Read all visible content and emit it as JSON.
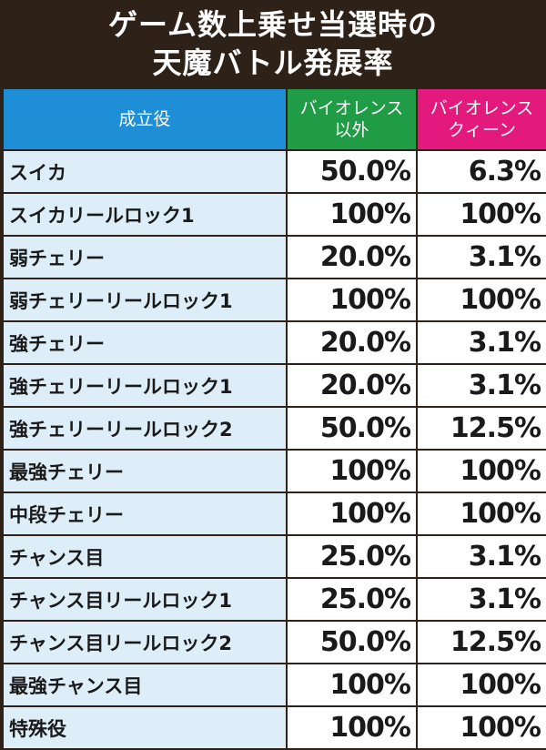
{
  "title": {
    "line1": "ゲーム数上乗せ当選時の",
    "line2": "天魔バトル発展率"
  },
  "headers": {
    "col0": "成立役",
    "col1_line1": "バイオレンス",
    "col1_line2": "以外",
    "col2_line1": "バイオレンス",
    "col2_line2": "クィーン"
  },
  "colors": {
    "header_blue": "#1e8fd6",
    "header_green": "#1f9c45",
    "header_pink": "#e4197e",
    "row_label_bg": "#ddeef9",
    "background": "#2e2218"
  },
  "rows": [
    {
      "name": "スイカ",
      "other": "50.0%",
      "queen": "6.3%"
    },
    {
      "name": "スイカリールロック1",
      "other": "100%",
      "queen": "100%"
    },
    {
      "name": "弱チェリー",
      "other": "20.0%",
      "queen": "3.1%"
    },
    {
      "name": "弱チェリーリールロック1",
      "other": "100%",
      "queen": "100%"
    },
    {
      "name": "強チェリー",
      "other": "20.0%",
      "queen": "3.1%"
    },
    {
      "name": "強チェリーリールロック1",
      "other": "20.0%",
      "queen": "3.1%"
    },
    {
      "name": "強チェリーリールロック2",
      "other": "50.0%",
      "queen": "12.5%"
    },
    {
      "name": "最強チェリー",
      "other": "100%",
      "queen": "100%"
    },
    {
      "name": "中段チェリー",
      "other": "100%",
      "queen": "100%"
    },
    {
      "name": "チャンス目",
      "other": "25.0%",
      "queen": "3.1%"
    },
    {
      "name": "チャンス目リールロック1",
      "other": "25.0%",
      "queen": "3.1%"
    },
    {
      "name": "チャンス目リールロック2",
      "other": "50.0%",
      "queen": "12.5%"
    },
    {
      "name": "最強チャンス目",
      "other": "100%",
      "queen": "100%"
    },
    {
      "name": "特殊役",
      "other": "100%",
      "queen": "100%"
    }
  ]
}
